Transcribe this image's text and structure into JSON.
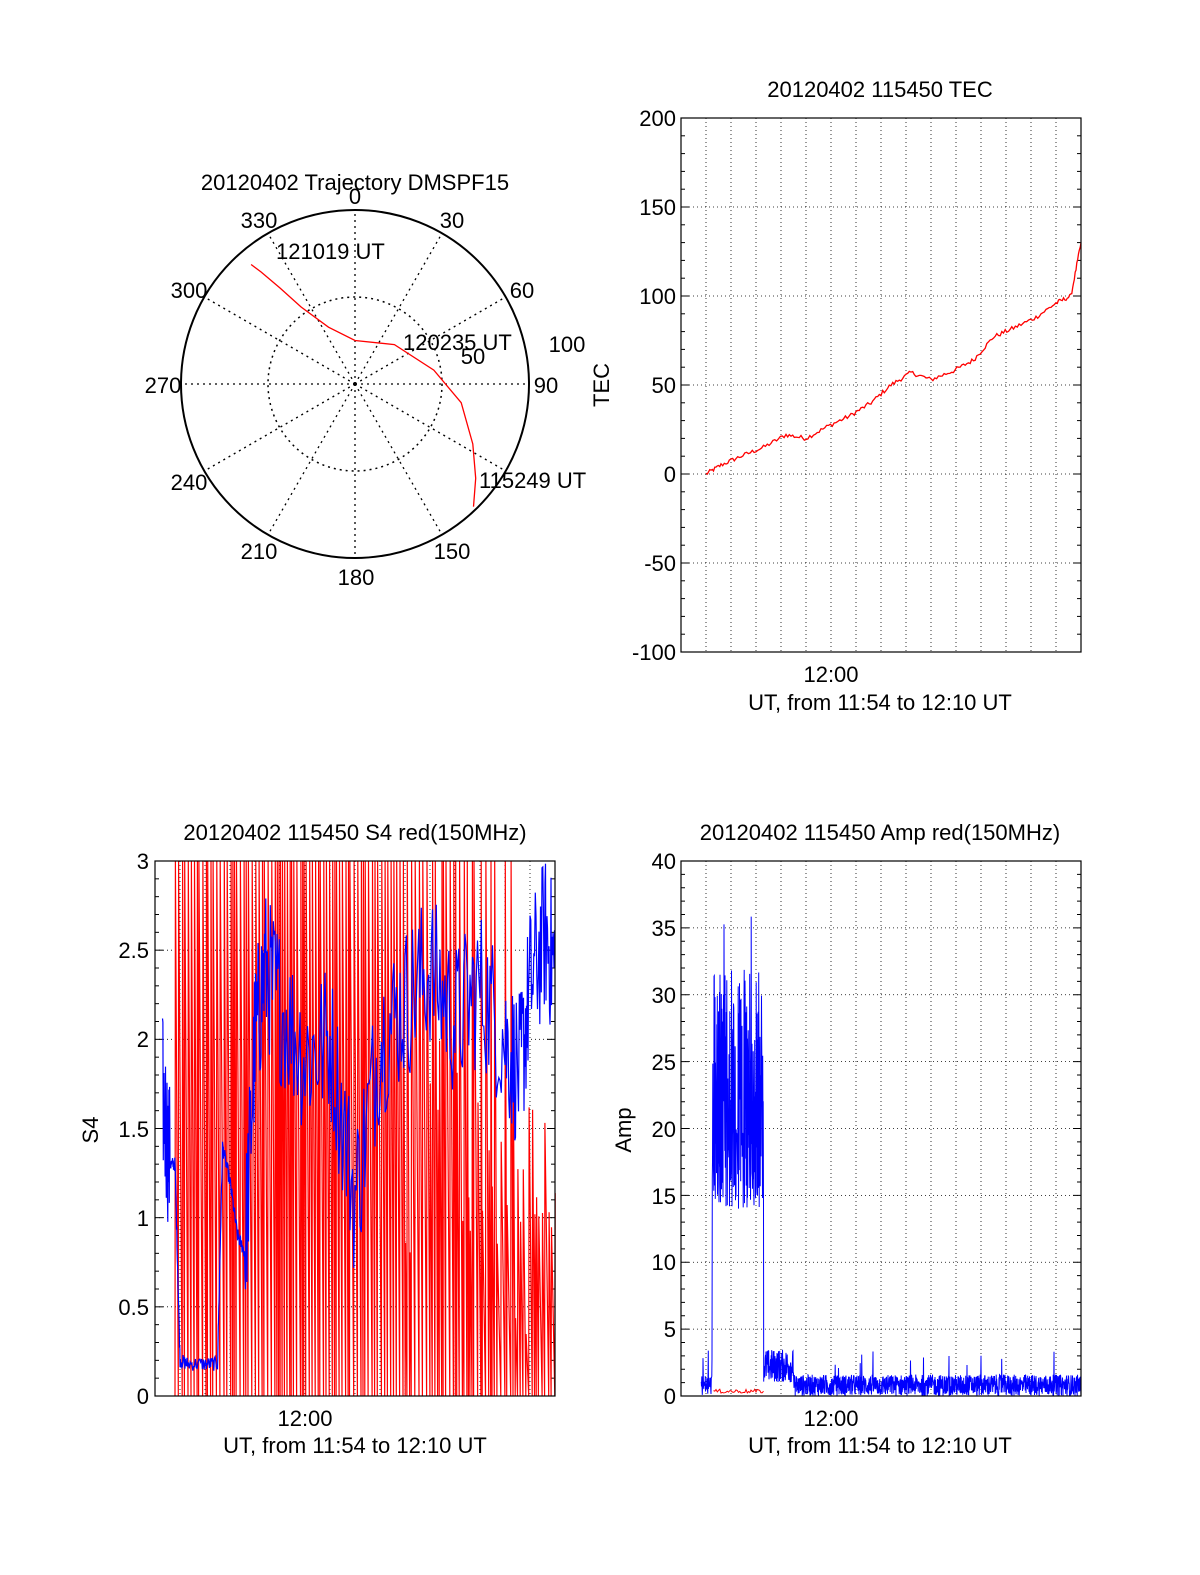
{
  "chart_data": [
    {
      "type": "polar",
      "title": "20120402 Trajectory DMSPF15",
      "azimuth_ticks": [
        "0",
        "30",
        "60",
        "90",
        "150",
        "180",
        "210",
        "240",
        "270",
        "300",
        "330"
      ],
      "radial_ticks": [
        "50",
        "100"
      ],
      "labels": {
        "start": "115249 UT",
        "mid": "120235 UT",
        "end": "121019 UT"
      },
      "trajectory": {
        "color": "#ff0000",
        "points": [
          {
            "az": 136,
            "zen": 98
          },
          {
            "az": 128,
            "zen": 88
          },
          {
            "az": 117,
            "zen": 76
          },
          {
            "az": 100,
            "zen": 62
          },
          {
            "az": 80,
            "zen": 46
          },
          {
            "az": 45,
            "zen": 32
          },
          {
            "az": 0,
            "zen": 25
          },
          {
            "az": 335,
            "zen": 36
          },
          {
            "az": 325,
            "zen": 54
          },
          {
            "az": 322,
            "zen": 70
          },
          {
            "az": 320,
            "zen": 84
          },
          {
            "az": 319,
            "zen": 91
          }
        ]
      }
    },
    {
      "type": "line",
      "title": "20120402 115450 TEC",
      "xlabel": "UT, from 11:54 to 12:10 UT",
      "ylabel": "TEC",
      "xtick_labels": [
        "12:00"
      ],
      "ytick_labels": [
        "200",
        "150",
        "100",
        "50",
        "0",
        "-50",
        "-100"
      ],
      "ylim": [
        -100,
        200
      ],
      "grid": true,
      "series": [
        {
          "color": "#ff0000",
          "x_minutes": [
            1.0,
            1.6,
            2.4,
            3.3,
            4.2,
            5.0,
            5.9,
            6.8,
            7.6,
            8.4,
            9.2,
            10.0,
            10.9,
            11.7,
            12.5,
            13.3,
            14.2,
            15.0,
            15.6,
            16.0
          ],
          "values": [
            0,
            5,
            10,
            15,
            22,
            20,
            27,
            33,
            40,
            50,
            57,
            53,
            58,
            64,
            77,
            82,
            88,
            96,
            100,
            130
          ]
        }
      ]
    },
    {
      "type": "line",
      "title": "20120402 115450 S4 red(150MHz)",
      "xlabel": "UT, from 11:54 to 12:10 UT",
      "ylabel": "S4",
      "xtick_labels": [
        "12:00"
      ],
      "ytick_labels": [
        "3",
        "2.5",
        "2",
        "1.5",
        "1",
        "0.5",
        "0"
      ],
      "ylim": [
        0,
        3
      ],
      "grid": true,
      "series": [
        {
          "color": "#ff0000",
          "style": "dense spikes between 0 and 3"
        },
        {
          "color": "#0000ff",
          "x_minutes": [
            0.3,
            0.6,
            0.8,
            1.0,
            1.3,
            2.0,
            2.5,
            2.7,
            3.0,
            3.3,
            3.6,
            4.0,
            4.4,
            5.0,
            6.0,
            7.0,
            8.0,
            9.0,
            10.0,
            11.0,
            12.0,
            13.0,
            14.0,
            14.6,
            15.0,
            15.6,
            16.0
          ],
          "values": [
            1.7,
            1.3,
            1.3,
            0.2,
            0.18,
            0.18,
            0.18,
            1.4,
            1.2,
            0.9,
            0.8,
            2.0,
            2.4,
            2.2,
            1.9,
            2.0,
            1.1,
            2.0,
            2.2,
            2.4,
            2.1,
            2.3,
            2.0,
            1.8,
            2.3,
            2.6,
            2.4
          ]
        }
      ]
    },
    {
      "type": "line",
      "title": "20120402 115450 Amp red(150MHz)",
      "xlabel": "UT, from 11:54 to 12:10 UT",
      "ylabel": "Amp",
      "xtick_labels": [
        "12:00"
      ],
      "ytick_labels": [
        "40",
        "35",
        "30",
        "25",
        "20",
        "15",
        "10",
        "5",
        "0"
      ],
      "ylim": [
        0,
        40
      ],
      "grid": true,
      "series": [
        {
          "color": "#0000ff",
          "style": "noise band 15-33 from 1.3 to 3.3 min, ~1 elsewhere"
        },
        {
          "color": "#ff0000",
          "style": "near zero"
        }
      ]
    }
  ]
}
